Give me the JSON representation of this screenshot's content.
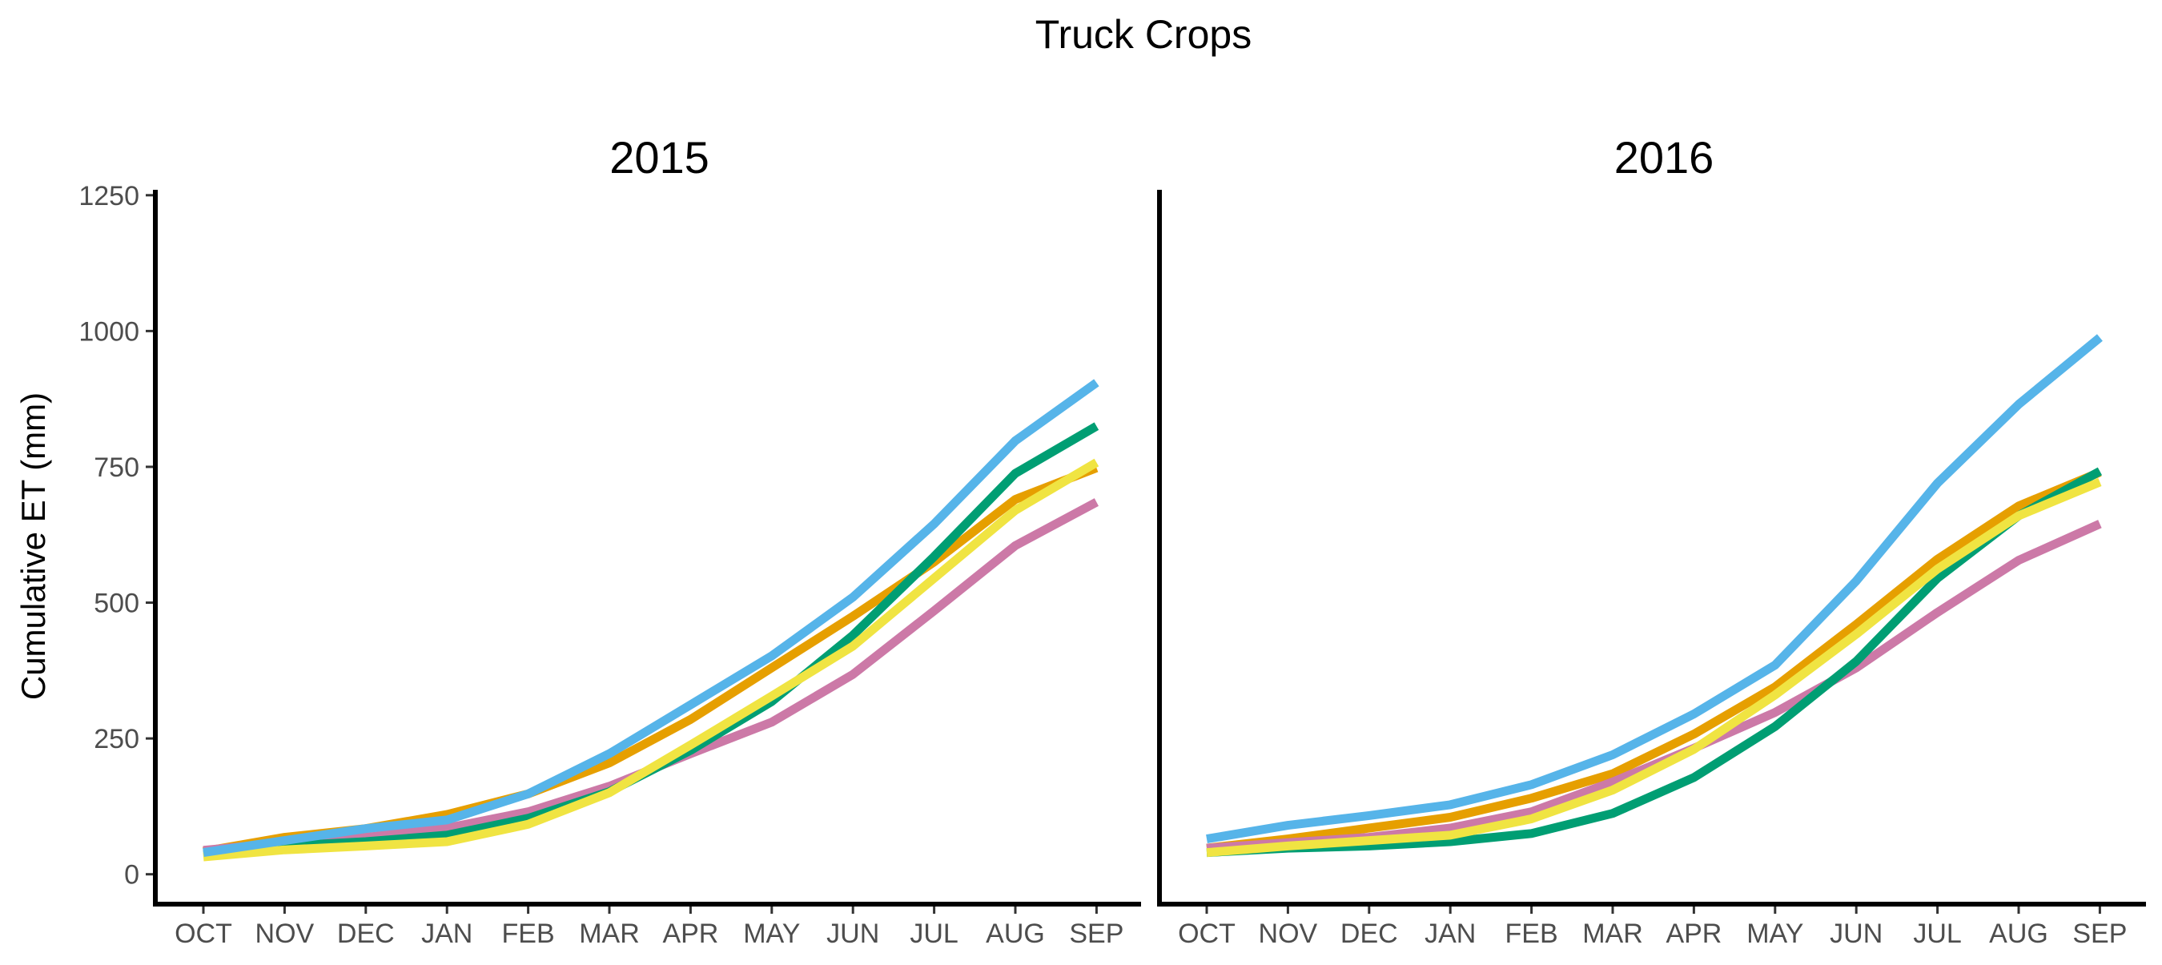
{
  "chart_data": {
    "type": "line",
    "title": "Truck Crops",
    "ylabel": "Cumulative ET (mm)",
    "xlabel": "",
    "categories": [
      "OCT",
      "NOV",
      "DEC",
      "JAN",
      "FEB",
      "MAR",
      "APR",
      "MAY",
      "JUN",
      "JUL",
      "AUG",
      "SEP"
    ],
    "ylim": [
      -55,
      1260
    ],
    "yticks": [
      0,
      250,
      500,
      750,
      1000,
      1250
    ],
    "grid": false,
    "legend": "none",
    "panels": [
      {
        "title": "2015",
        "series": [
          {
            "color": "#E69F00",
            "values": [
              42,
              68,
              84,
              110,
              148,
              205,
              285,
              380,
              475,
              575,
              690,
              748
            ]
          },
          {
            "color": "#CC79A7",
            "values": [
              44,
              58,
              68,
              85,
              115,
              162,
              222,
              280,
              368,
              485,
              605,
              685
            ]
          },
          {
            "color": "#009E73",
            "values": [
              38,
              52,
              60,
              72,
              103,
              152,
              228,
              318,
              440,
              585,
              738,
              825
            ]
          },
          {
            "color": "#F0E442",
            "values": [
              32,
              45,
              52,
              60,
              92,
              150,
              238,
              328,
              420,
              545,
              670,
              758
            ]
          },
          {
            "color": "#56B4E9",
            "values": [
              40,
              62,
              84,
              100,
              148,
              222,
              312,
              402,
              510,
              645,
              798,
              905
            ]
          }
        ]
      },
      {
        "title": "2016",
        "series": [
          {
            "color": "#E69F00",
            "values": [
              48,
              65,
              85,
              105,
              140,
              185,
              258,
              345,
              460,
              580,
              678,
              740
            ]
          },
          {
            "color": "#CC79A7",
            "values": [
              48,
              58,
              68,
              85,
              115,
              170,
              232,
              298,
              380,
              482,
              578,
              645
            ]
          },
          {
            "color": "#009E73",
            "values": [
              40,
              48,
              52,
              60,
              75,
              112,
              178,
              272,
              392,
              545,
              660,
              742
            ]
          },
          {
            "color": "#F0E442",
            "values": [
              40,
              52,
              62,
              72,
              102,
              155,
              230,
              330,
              442,
              562,
              660,
              722
            ]
          },
          {
            "color": "#56B4E9",
            "values": [
              65,
              90,
              108,
              128,
              165,
              220,
              295,
              385,
              540,
              720,
              865,
              988
            ]
          }
        ]
      }
    ]
  }
}
